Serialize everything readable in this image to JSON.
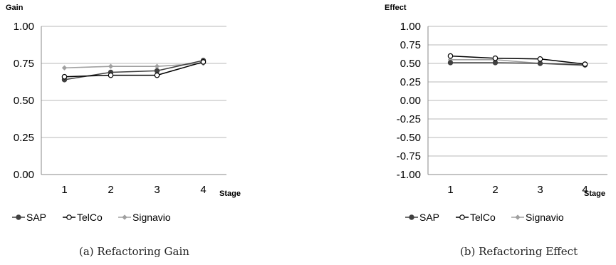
{
  "chart_data": [
    {
      "type": "line",
      "ylabel": "Gain",
      "xlabel": "Stage",
      "categories": [
        "1",
        "2",
        "3",
        "4"
      ],
      "ylim": [
        0,
        1
      ],
      "yticks": [
        "0.00",
        "0.25",
        "0.50",
        "0.75",
        "1.00"
      ],
      "grid": true,
      "legend": "bottom",
      "caption": "(a) Refactoring Gain",
      "series": [
        {
          "name": "SAP",
          "values": [
            0.64,
            0.69,
            0.7,
            0.77
          ],
          "color": "#404040",
          "marker": "filled-circle"
        },
        {
          "name": "TelCo",
          "values": [
            0.66,
            0.67,
            0.67,
            0.76
          ],
          "color": "#000000",
          "marker": "open-circle"
        },
        {
          "name": "Signavio",
          "values": [
            0.72,
            0.73,
            0.73,
            0.75
          ],
          "color": "#a0a0a0",
          "marker": "diamond"
        }
      ]
    },
    {
      "type": "line",
      "ylabel": "Effect",
      "xlabel": "Stage",
      "categories": [
        "1",
        "2",
        "3",
        "4"
      ],
      "ylim": [
        -1,
        1
      ],
      "yticks": [
        "-1.00",
        "-0.75",
        "-0.50",
        "-0.25",
        "0.00",
        "0.25",
        "0.50",
        "0.75",
        "1.00"
      ],
      "grid": true,
      "legend": "bottom",
      "caption": "(b) Refactoring Effect",
      "series": [
        {
          "name": "SAP",
          "values": [
            0.51,
            0.51,
            0.5,
            0.48
          ],
          "color": "#404040",
          "marker": "filled-circle"
        },
        {
          "name": "TelCo",
          "values": [
            0.6,
            0.57,
            0.56,
            0.49
          ],
          "color": "#000000",
          "marker": "open-circle"
        },
        {
          "name": "Signavio",
          "values": [
            0.55,
            0.55,
            0.5,
            0.47
          ],
          "color": "#a0a0a0",
          "marker": "diamond"
        }
      ]
    }
  ]
}
